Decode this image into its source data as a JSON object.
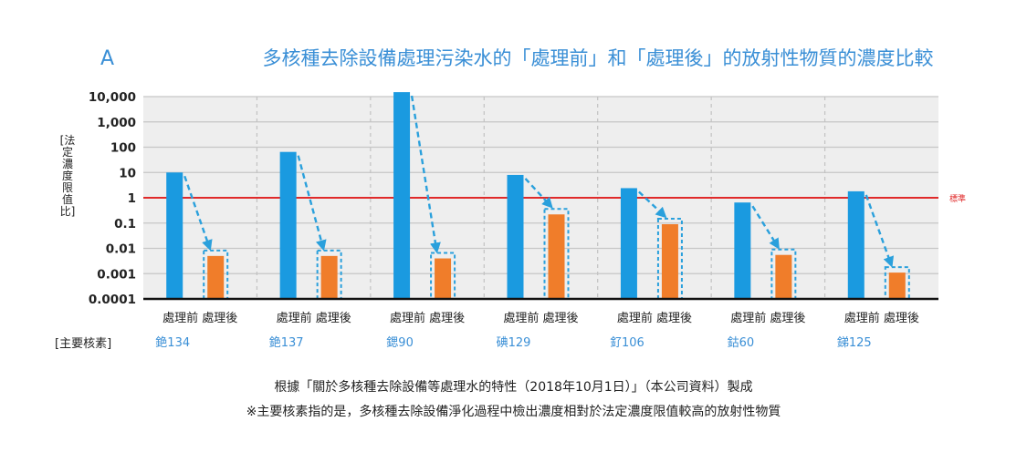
{
  "panel_label": "A",
  "title": "多核種去除設備處理污染水的「處理前」和「處理後」的放射性物質的濃度比較",
  "ylabel": "[法定濃度限值比]",
  "nuclide_key_label": "[主要核素]",
  "footnotes": [
    "根據「關於多核種去除設備等處理水的特性（2018年10月1日）」（本公司資料）製成",
    "※主要核素指的是，多核種去除設備淨化過程中檢出濃度相對於法定濃度限值較高的放射性物質"
  ],
  "colors": {
    "before": "#1a9ae0",
    "after": "#f07d2a",
    "standard_line": "#e02a2a",
    "arrow": "#2aa0dc",
    "nuclide_text": "#3a8fd6",
    "plot_bg": "#eeeeee"
  },
  "chart_data": {
    "type": "bar",
    "yscale": "log",
    "ylim": [
      0.0001,
      10000
    ],
    "y_ticks": [
      "0.0001",
      "0.001",
      "0.01",
      "0.1",
      "1",
      "10",
      "100",
      "1,000",
      "10,000"
    ],
    "grid": true,
    "standard_line": {
      "value": 1,
      "label": "標準"
    },
    "groups": [
      {
        "nuclide": "銫134",
        "before": 10,
        "after": 0.005
      },
      {
        "nuclide": "銫137",
        "before": 65,
        "after": 0.005
      },
      {
        "nuclide": "鍶90",
        "before": 15000,
        "after": 0.004
      },
      {
        "nuclide": "碘129",
        "before": 8,
        "after": 0.22
      },
      {
        "nuclide": "釕106",
        "before": 2.4,
        "after": 0.09
      },
      {
        "nuclide": "鈷60",
        "before": 0.65,
        "after": 0.0055
      },
      {
        "nuclide": "銻125",
        "before": 1.8,
        "after": 0.0011
      }
    ],
    "bar_labels": {
      "before": "處理前",
      "after": "處理後"
    }
  }
}
